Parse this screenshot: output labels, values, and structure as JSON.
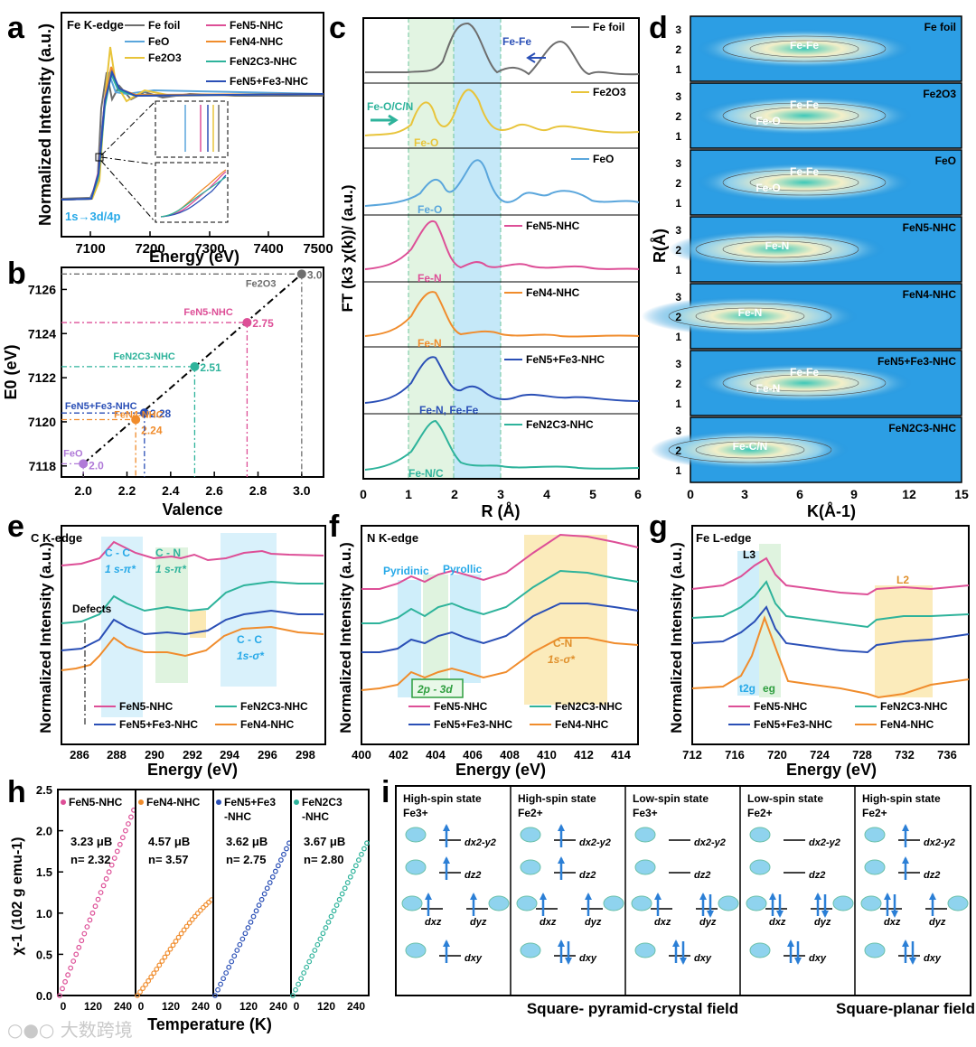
{
  "panel_labels": {
    "a": "a",
    "b": "b",
    "c": "c",
    "d": "d",
    "e": "e",
    "f": "f",
    "g": "g",
    "h": "h",
    "i": "i"
  },
  "watermark": "大数跨境",
  "colors": {
    "fefoil": "#6e6e6e",
    "feo": "#5aa6dc",
    "fe2o3": "#e8c43a",
    "n5": "#dd4f97",
    "n4": "#f08c2c",
    "n2c3": "#2eb39b",
    "n5fe3": "#2a4fb6",
    "purple": "#b07ad8",
    "blue_bg": "#27a9e8"
  },
  "chart_data": [
    {
      "id": "a",
      "type": "line",
      "title": "Fe K-edge",
      "xlabel": "Energy (eV)",
      "ylabel": "Normalized Intensity (a.u.)",
      "xlim": [
        7050,
        7500
      ],
      "xticks": [
        7100,
        7200,
        7300,
        7400,
        7500
      ],
      "annotation": "1s→3d/4p",
      "series": [
        {
          "name": "Fe foil",
          "color": "#6e6e6e"
        },
        {
          "name": "FeO",
          "color": "#5aa6dc"
        },
        {
          "name": "Fe2O3",
          "color": "#e8c43a"
        },
        {
          "name": "FeN5-NHC",
          "color": "#dd4f97"
        },
        {
          "name": "FeN4-NHC",
          "color": "#f08c2c"
        },
        {
          "name": "FeN2C3-NHC",
          "color": "#2eb39b"
        },
        {
          "name": "FeN5+Fe3-NHC",
          "color": "#2a4fb6"
        }
      ]
    },
    {
      "id": "b",
      "type": "scatter",
      "xlabel": "Valence",
      "ylabel": "E0 (eV)",
      "xlim": [
        1.9,
        3.1
      ],
      "ylim": [
        7117.5,
        7127
      ],
      "xticks": [
        "2.0",
        "2.2",
        "2.4",
        "2.6",
        "2.8",
        "3.0"
      ],
      "yticks": [
        "7118",
        "7120",
        "7122",
        "7124",
        "7126"
      ],
      "points": [
        {
          "name": "FeO",
          "x": 2.0,
          "y": 7118.1,
          "label": "2.0",
          "color": "#b07ad8"
        },
        {
          "name": "FeN4-NHC",
          "x": 2.24,
          "y": 7120.1,
          "label": "2.24",
          "color": "#f08c2c"
        },
        {
          "name": "FeN5+Fe3-NHC",
          "x": 2.28,
          "y": 7120.4,
          "label": "2.28",
          "color": "#2a4fb6"
        },
        {
          "name": "FeN2C3-NHC",
          "x": 2.51,
          "y": 7122.5,
          "label": "2.51",
          "color": "#2eb39b"
        },
        {
          "name": "FeN5-NHC",
          "x": 2.75,
          "y": 7124.5,
          "label": "2.75",
          "color": "#dd4f97"
        },
        {
          "name": "Fe2O3",
          "x": 3.0,
          "y": 7126.7,
          "label": "3.0",
          "color": "#6e6e6e"
        }
      ]
    },
    {
      "id": "c",
      "type": "line",
      "xlabel": "R (Å)",
      "ylabel": "FT (k3 χ(k))/ (a.u.)",
      "xlim": [
        0,
        6
      ],
      "xticks": [
        "0",
        "1",
        "2",
        "3",
        "4",
        "5",
        "6"
      ],
      "panels": [
        {
          "name": "Fe foil",
          "peaks": "Fe-Fe"
        },
        {
          "name": "Fe2O3",
          "peaks": "Fe-O"
        },
        {
          "name": "FeO",
          "peaks": "Fe-O"
        },
        {
          "name": "FeN5-NHC",
          "peaks": "Fe-N"
        },
        {
          "name": "FeN4-NHC",
          "peaks": "Fe-N"
        },
        {
          "name": "FeN5+Fe3-NHC",
          "peaks": "Fe-N, Fe-Fe"
        },
        {
          "name": "FeN2C3-NHC",
          "peaks": "Fe-N/C"
        }
      ],
      "annotations": [
        "Fe-O/C/N",
        "Fe-Fe"
      ]
    },
    {
      "id": "d",
      "type": "heatmap",
      "xlabel": "K(Å-1)",
      "ylabel": "R(Å)",
      "xlim": [
        0,
        15
      ],
      "xticks": [
        "0",
        "3",
        "6",
        "9",
        "12",
        "15"
      ],
      "yticks": [
        "1",
        "2",
        "3"
      ],
      "panels": [
        {
          "name": "Fe foil",
          "labels": [
            "Fe-Fe"
          ]
        },
        {
          "name": "Fe2O3",
          "labels": [
            "Fe-Fe",
            "Fe-O"
          ]
        },
        {
          "name": "FeO",
          "labels": [
            "Fe-Fe",
            "Fe-O"
          ]
        },
        {
          "name": "FeN5-NHC",
          "labels": [
            "Fe-N"
          ]
        },
        {
          "name": "FeN4-NHC",
          "labels": [
            "Fe-N"
          ]
        },
        {
          "name": "FeN5+Fe3-NHC",
          "labels": [
            "Fe-Fe",
            "Fe-N"
          ]
        },
        {
          "name": "FeN2C3-NHC",
          "labels": [
            "Fe-C/N"
          ]
        }
      ]
    },
    {
      "id": "e",
      "type": "line",
      "title": "C K-edge",
      "xlabel": "Energy (eV)",
      "ylabel": "Normalized Intensity (a.u.)",
      "xlim": [
        285,
        299
      ],
      "xticks": [
        "286",
        "288",
        "290",
        "292",
        "294",
        "296",
        "298"
      ],
      "annotations": [
        "C - C",
        "1 s-π*",
        "C - N",
        "1 s-π*",
        "C - C",
        "1s-σ*",
        "Defects"
      ],
      "legend": [
        "FeN5-NHC",
        "FeN2C3-NHC",
        "FeN5+Fe3-NHC",
        "FeN4-NHC"
      ]
    },
    {
      "id": "f",
      "type": "line",
      "title": "N K-edge",
      "xlabel": "Energy (eV)",
      "ylabel": "Normalized Intensity (a.u.)",
      "xlim": [
        400,
        415
      ],
      "xticks": [
        "400",
        "402",
        "404",
        "406",
        "408",
        "410",
        "412",
        "414"
      ],
      "annotations": [
        "Pyridinic",
        "Pyrollic",
        "2p - 3d",
        "C-N",
        "1s-σ*"
      ],
      "legend": [
        "FeN5-NHC",
        "FeN2C3-NHC",
        "FeN5+Fe3-NHC",
        "FeN4-NHC"
      ]
    },
    {
      "id": "g",
      "type": "line",
      "title": "Fe L-edge",
      "xlabel": "Energy (eV)",
      "ylabel": "Normalized Intensity (a.u.)",
      "xlim": [
        712,
        738
      ],
      "xticks": [
        "712",
        "716",
        "720",
        "724",
        "728",
        "732",
        "736"
      ],
      "annotations": [
        "L3",
        "L2",
        "t2g",
        "eg"
      ],
      "legend": [
        "FeN5-NHC",
        "FeN2C3-NHC",
        "FeN5+Fe3-NHC",
        "FeN4-NHC"
      ]
    },
    {
      "id": "h",
      "type": "scatter",
      "xlabel": "Temperature (K)",
      "ylabel": "χ-1 (102 g emu-1)",
      "ylim": [
        0,
        2.5
      ],
      "yticks": [
        "0.0",
        "0.5",
        "1.0",
        "1.5",
        "2.0",
        "2.5"
      ],
      "xticks": [
        "0",
        "120",
        "240"
      ],
      "subpanels": [
        {
          "name": "FeN5-NHC",
          "moment": "3.23 μB",
          "n": "n= 2.32",
          "color": "#dd4f97",
          "end": 2.25
        },
        {
          "name": "FeN4-NHC",
          "moment": "4.57 μB",
          "n": "n= 3.57",
          "color": "#f08c2c",
          "end": 1.27
        },
        {
          "name": "FeN5+Fe3 -NHC",
          "moment": "3.62 μB",
          "n": "n= 2.75",
          "color": "#2a4fb6",
          "end": 1.85
        },
        {
          "name": "FeN2C3 -NHC",
          "moment": "3.67 μB",
          "n": "n= 2.80",
          "color": "#2eb39b",
          "end": 1.85
        }
      ]
    }
  ],
  "panel_i": {
    "columns": [
      {
        "state": "High-spin state",
        "ion": "Fe3+"
      },
      {
        "state": "High-spin state",
        "ion": "Fe2+"
      },
      {
        "state": "Low-spin state",
        "ion": "Fe3+"
      },
      {
        "state": "Low-spin state",
        "ion": "Fe2+"
      },
      {
        "state": "High-spin state",
        "ion": "Fe2+"
      }
    ],
    "orbitals": [
      "dx2-y2",
      "dz2",
      "dxz",
      "dyz",
      "dxy"
    ],
    "footer_left": "Square- pyramid-crystal field",
    "footer_right": "Square-planar field"
  }
}
